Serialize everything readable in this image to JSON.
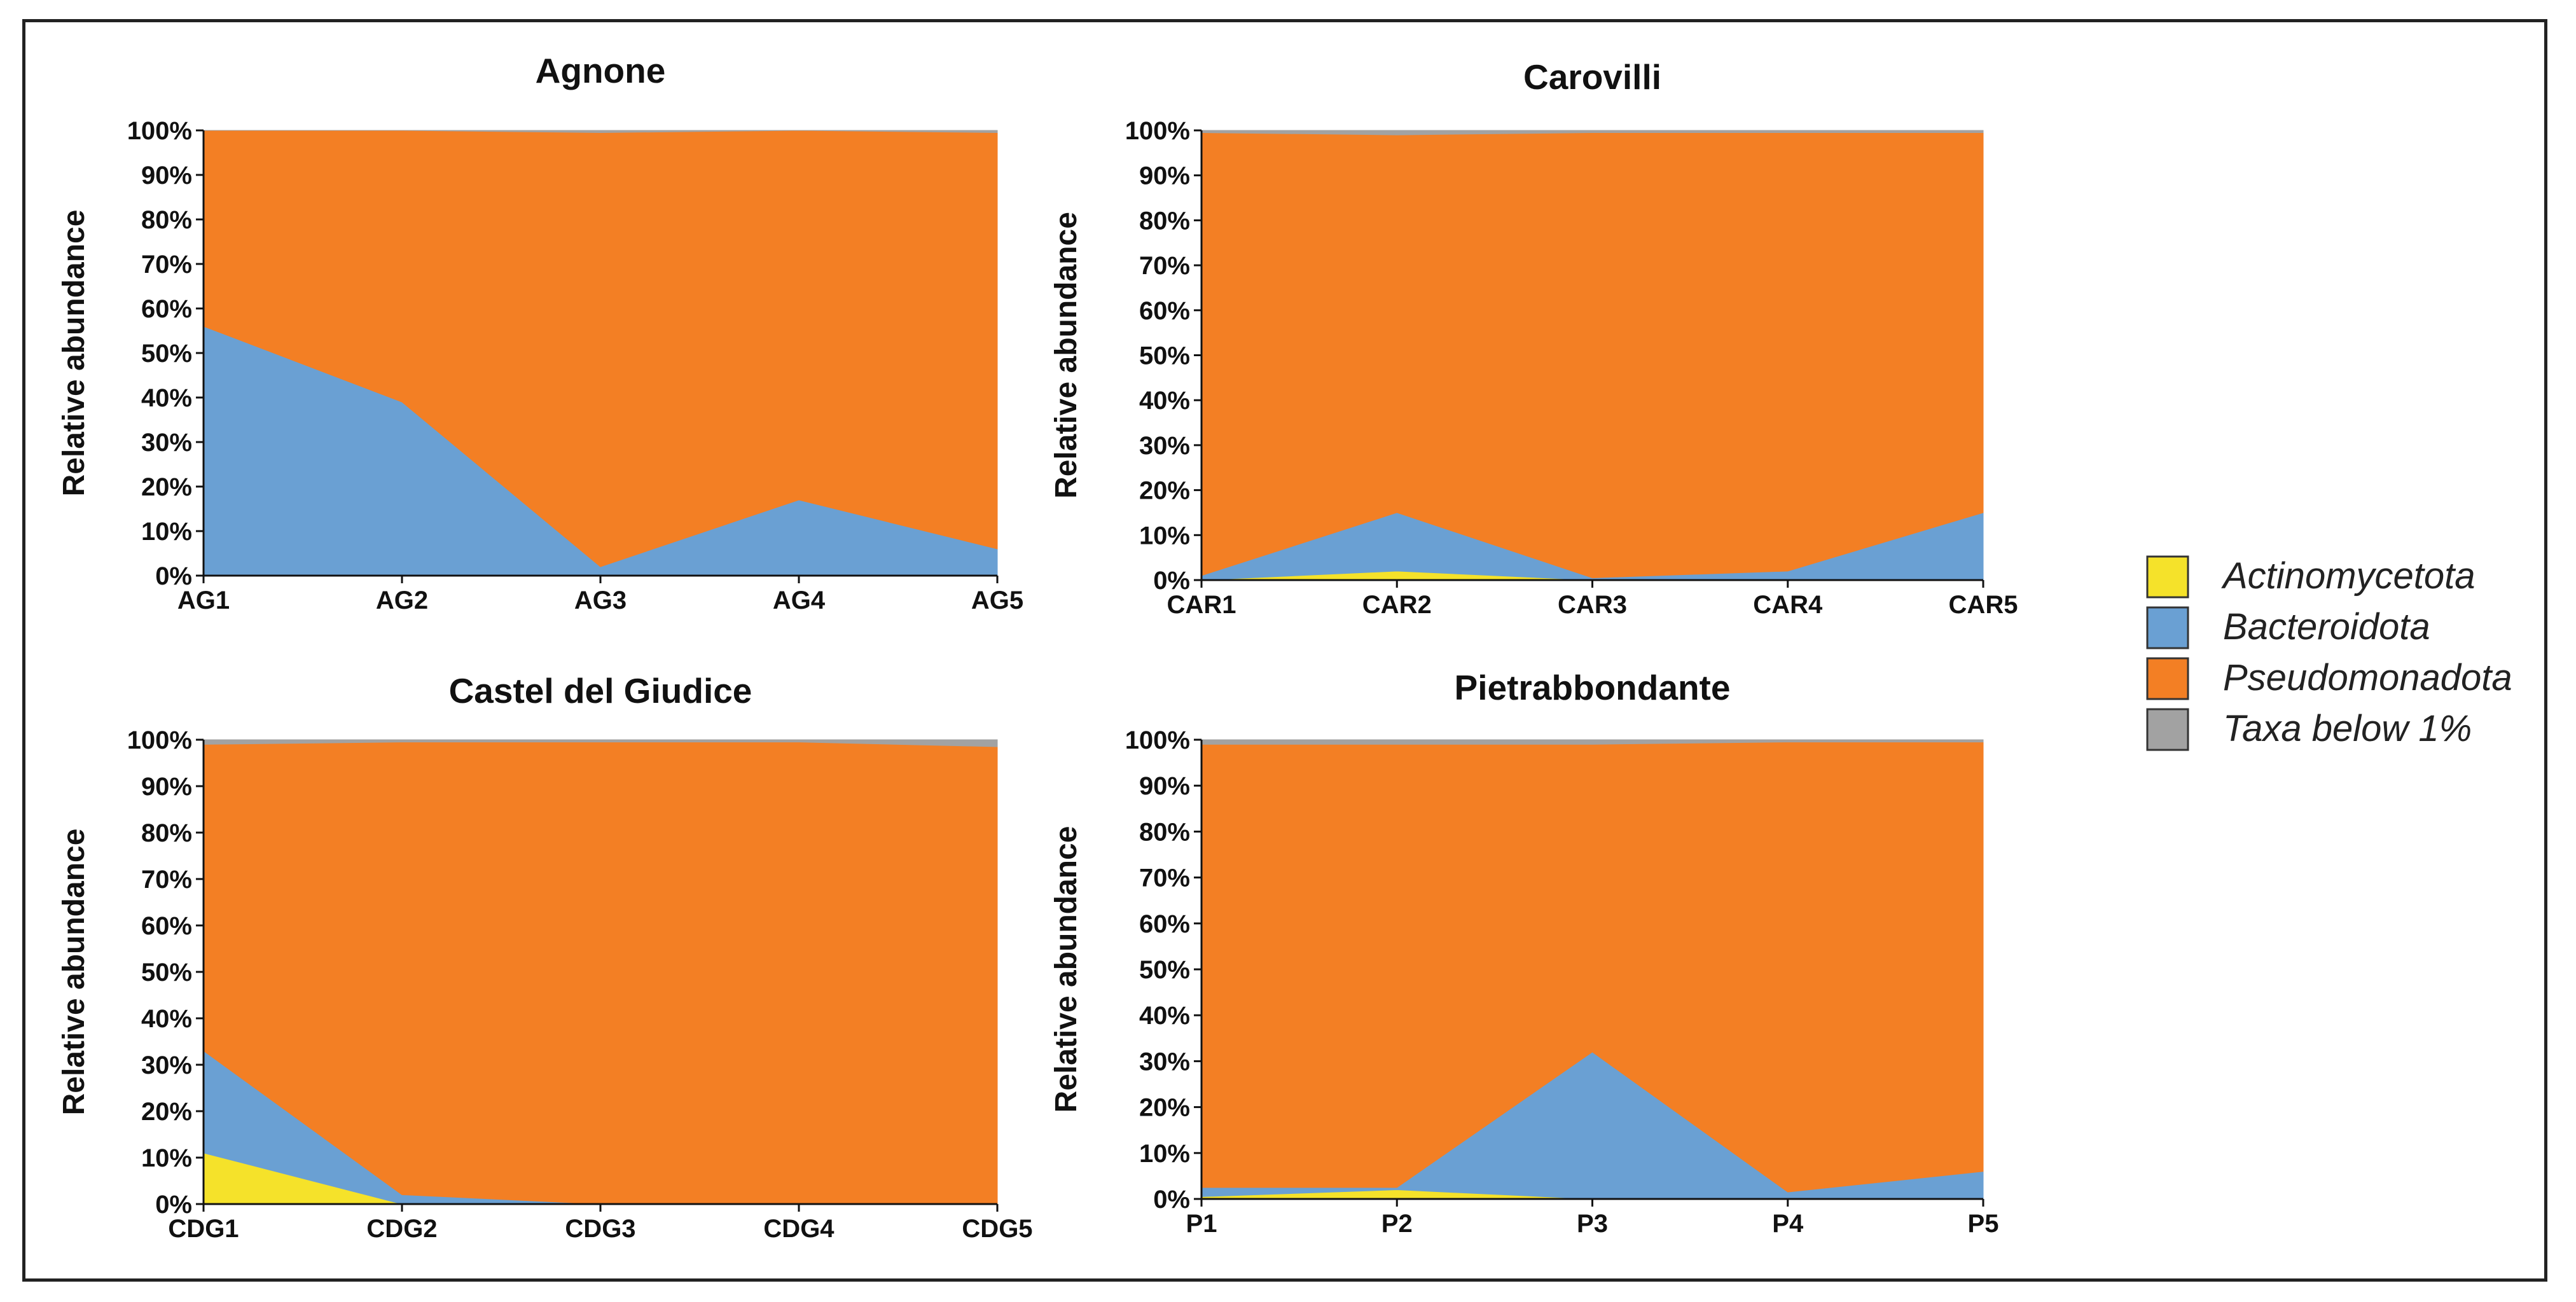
{
  "colors": {
    "Actinomycetota": "#f5e22a",
    "Bacteroidota": "#6aa0d3",
    "Pseudomonadota": "#f37f24",
    "Taxa below 1%": "#a2a2a2"
  },
  "legend": {
    "items": [
      "Actinomycetota",
      "Bacteroidota",
      "Pseudomonadota",
      "Taxa below 1%"
    ]
  },
  "chart_data": [
    {
      "type": "area",
      "stacked": true,
      "title": "Agnone",
      "ylabel": "Relative abundance",
      "ylim": [
        0,
        100
      ],
      "yticks": [
        "0%",
        "10%",
        "20%",
        "30%",
        "40%",
        "50%",
        "60%",
        "70%",
        "80%",
        "90%",
        "100%"
      ],
      "categories": [
        "AG1",
        "AG2",
        "AG3",
        "AG4",
        "AG5"
      ],
      "series": [
        {
          "name": "Actinomycetota",
          "values": [
            0,
            0,
            0,
            0,
            0
          ]
        },
        {
          "name": "Bacteroidota",
          "values": [
            56,
            39,
            2,
            17,
            6
          ]
        },
        {
          "name": "Pseudomonadota",
          "values": [
            44,
            61,
            97.5,
            83,
            93.5
          ]
        },
        {
          "name": "Taxa below 1%",
          "values": [
            0,
            0,
            0.5,
            0,
            0.5
          ]
        }
      ]
    },
    {
      "type": "area",
      "stacked": true,
      "title": "Carovilli",
      "ylabel": "Relative abundance",
      "ylim": [
        0,
        100
      ],
      "yticks": [
        "0%",
        "10%",
        "20%",
        "30%",
        "40%",
        "50%",
        "60%",
        "70%",
        "80%",
        "90%",
        "100%"
      ],
      "categories": [
        "CAR1",
        "CAR2",
        "CAR3",
        "CAR4",
        "CAR5"
      ],
      "series": [
        {
          "name": "Actinomycetota",
          "values": [
            0,
            2,
            0,
            0,
            0
          ]
        },
        {
          "name": "Bacteroidota",
          "values": [
            1,
            13,
            0.5,
            2,
            15
          ]
        },
        {
          "name": "Pseudomonadota",
          "values": [
            98.5,
            84,
            99,
            97.5,
            84.5
          ]
        },
        {
          "name": "Taxa below 1%",
          "values": [
            0.5,
            1,
            0.5,
            0.5,
            0.5
          ]
        }
      ]
    },
    {
      "type": "area",
      "stacked": true,
      "title": "Castel del Giudice",
      "ylabel": "Relative abundance",
      "ylim": [
        0,
        100
      ],
      "yticks": [
        "0%",
        "10%",
        "20%",
        "30%",
        "40%",
        "50%",
        "60%",
        "70%",
        "80%",
        "90%",
        "100%"
      ],
      "categories": [
        "CDG1",
        "CDG2",
        "CDG3",
        "CDG4",
        "CDG5"
      ],
      "series": [
        {
          "name": "Actinomycetota",
          "values": [
            11,
            0,
            0,
            0,
            0
          ]
        },
        {
          "name": "Bacteroidota",
          "values": [
            22,
            2,
            0,
            0,
            0
          ]
        },
        {
          "name": "Pseudomonadota",
          "values": [
            66,
            97.5,
            99.5,
            99.5,
            98.5
          ]
        },
        {
          "name": "Taxa below 1%",
          "values": [
            1,
            0.5,
            0.5,
            0.5,
            1.5
          ]
        }
      ]
    },
    {
      "type": "area",
      "stacked": true,
      "title": "Pietrabbondante",
      "ylabel": "Relative abundance",
      "ylim": [
        0,
        100
      ],
      "yticks": [
        "0%",
        "10%",
        "20%",
        "30%",
        "40%",
        "50%",
        "60%",
        "70%",
        "80%",
        "90%",
        "100%"
      ],
      "categories": [
        "P1",
        "P2",
        "P3",
        "P4",
        "P5"
      ],
      "series": [
        {
          "name": "Actinomycetota",
          "values": [
            0.5,
            2,
            0,
            0,
            0
          ]
        },
        {
          "name": "Bacteroidota",
          "values": [
            2,
            0.5,
            32,
            1.5,
            6
          ]
        },
        {
          "name": "Pseudomonadota",
          "values": [
            96.5,
            96.5,
            67,
            98,
            93.5
          ]
        },
        {
          "name": "Taxa below 1%",
          "values": [
            1,
            1,
            1,
            0.5,
            0.5
          ]
        }
      ]
    }
  ]
}
